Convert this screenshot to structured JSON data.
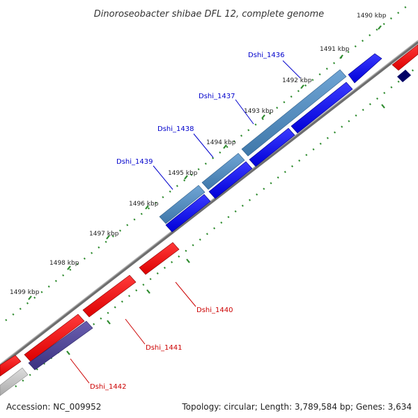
{
  "title": "Dinoroseobacter shibae DFL 12, complete genome",
  "footer": {
    "accession": "Accession: NC_009952",
    "summary": "Topology: circular; Length: 3,789,584 bp; Genes: 3,634"
  },
  "ticks": [
    {
      "label": "1490 kbp"
    },
    {
      "label": "1491 kbp"
    },
    {
      "label": "1492 kbp"
    },
    {
      "label": "1493 kbp"
    },
    {
      "label": "1494 kbp"
    },
    {
      "label": "1495 kbp"
    },
    {
      "label": "1496 kbp"
    },
    {
      "label": "1497 kbp"
    },
    {
      "label": "1498 kbp"
    },
    {
      "label": "1499 kbp"
    }
  ],
  "genes": [
    {
      "name": "Dshi_1436",
      "color": "#0000cc"
    },
    {
      "name": "Dshi_1437",
      "color": "#0000cc"
    },
    {
      "name": "Dshi_1438",
      "color": "#0000cc"
    },
    {
      "name": "Dshi_1439",
      "color": "#0000cc"
    },
    {
      "name": "Dshi_1440",
      "color": "#cc0000"
    },
    {
      "name": "Dshi_1441",
      "color": "#cc0000"
    },
    {
      "name": "Dshi_1442",
      "color": "#cc0000"
    }
  ],
  "colors": {
    "backbone": "#888888",
    "tick_marks": "#2e8b2e",
    "forward_cds": "#0000ee",
    "forward_gene": "#4682b4",
    "reverse_cds": "#ee0000",
    "reverse_gene": "#483d8b",
    "other": "#bbbbbb",
    "accent_dark": "#000066"
  }
}
